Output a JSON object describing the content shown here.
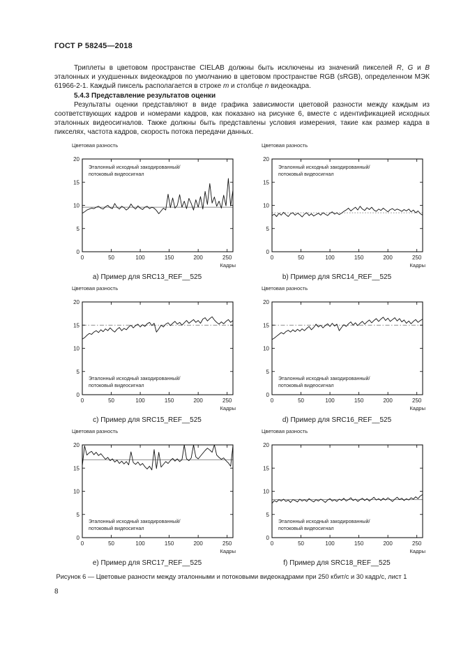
{
  "page": {
    "header": "ГОСТ Р 58245—2018",
    "para1": [
      {
        "t": "Триплеты в цветовом пространстве CIELAB должны быть исключены из значений пикселей "
      },
      {
        "t": "R",
        "i": true
      },
      {
        "t": ", "
      },
      {
        "t": "G",
        "i": true
      },
      {
        "t": " и "
      },
      {
        "t": "В",
        "i": true
      },
      {
        "t": " эталонных и ухудшенных видеокадров по умолчанию в цветовом пространстве RGB (sRGB), определенном МЭК 61966-2-1. Каждый пиксель располагается в строке "
      },
      {
        "t": "m",
        "i": true
      },
      {
        "t": " и столбце "
      },
      {
        "t": "n",
        "i": true
      },
      {
        "t": " видеокадра."
      }
    ],
    "heading_543": "5.4.3 Представление результатов оценки",
    "para2": "Результаты оценки представляют в виде графика зависимости цветовой разности между каждым из соответствующих кадров и номерами кадров, как показано на рисунке 6, вместе с идентификацией исходных эталонных видеосигналов. Также должны быть представлены условия измерения, такие как размер кадра в пикселях, частота кадров, скорость потока передачи данных.",
    "figure_caption": "Рисунок 6 — Цветовые разности между эталонными и потоковыми видеокадрами при 250 кбит/с и 30 кадр/с, лист 1",
    "page_number": "8"
  },
  "chart_common": {
    "ylabel": "Цветовая разность",
    "xlabel": "Кадры",
    "annotation": [
      "Эталонный исходный закодированный/",
      "потоковый видеосигнал"
    ],
    "line_color": "#111111",
    "ref_line_color": "#666666",
    "axis_color": "#000000"
  },
  "chart_data": [
    {
      "type": "line",
      "caption": "а) Пример для SRC13_REF__525",
      "annotation_pos": "top",
      "xlim": [
        0,
        260
      ],
      "ylim": [
        0,
        20
      ],
      "xticks": [
        0,
        50,
        100,
        150,
        200,
        250
      ],
      "yticks": [
        0,
        5,
        10,
        15,
        20
      ],
      "x_step": 4,
      "baseline": 9.6,
      "baseline_style": "solid",
      "values": [
        8.3,
        8.6,
        9.0,
        9.2,
        9.4,
        9.3,
        9.6,
        9.8,
        9.4,
        9.2,
        9.7,
        10.0,
        9.5,
        9.3,
        10.4,
        9.6,
        9.2,
        9.8,
        9.5,
        9.0,
        9.4,
        10.3,
        9.6,
        9.2,
        9.9,
        9.4,
        9.1,
        9.6,
        9.8,
        9.3,
        9.6,
        9.4,
        8.9,
        8.2,
        8.8,
        9.4,
        9.0,
        12.4,
        9.5,
        11.6,
        9.4,
        10.0,
        12.3,
        9.6,
        10.9,
        9.3,
        11.5,
        10.4,
        9.0,
        11.2,
        9.6,
        11.9,
        9.2,
        13.0,
        10.2,
        14.7,
        10.5,
        11.8,
        9.8,
        10.9,
        9.4,
        12.2,
        9.9,
        15.8,
        9.9,
        13.3
      ]
    },
    {
      "type": "line",
      "caption": "b) Пример для SRC14_REF__525",
      "annotation_pos": "top",
      "xlim": [
        0,
        260
      ],
      "ylim": [
        0,
        20
      ],
      "xticks": [
        0,
        50,
        100,
        150,
        200,
        250
      ],
      "yticks": [
        0,
        5,
        10,
        15,
        20
      ],
      "x_step": 4,
      "baseline": 8.4,
      "baseline_style": "dotted",
      "values": [
        7.8,
        8.1,
        7.6,
        8.3,
        7.9,
        8.5,
        8.0,
        7.6,
        8.2,
        8.4,
        7.9,
        8.3,
        8.0,
        7.5,
        8.1,
        8.4,
        7.8,
        8.2,
        7.7,
        8.0,
        8.3,
        7.9,
        8.4,
        8.1,
        7.8,
        8.3,
        8.6,
        8.1,
        8.4,
        8.0,
        8.3,
        8.7,
        9.0,
        9.4,
        8.8,
        9.2,
        9.6,
        9.0,
        9.8,
        9.2,
        8.9,
        9.5,
        9.1,
        9.6,
        9.0,
        8.7,
        9.2,
        8.9,
        9.4,
        9.0,
        8.6,
        9.1,
        9.3,
        8.9,
        9.2,
        9.0,
        8.7,
        9.1,
        8.8,
        9.2,
        8.6,
        9.0,
        8.4,
        8.8,
        8.2,
        7.9
      ]
    },
    {
      "type": "line",
      "caption": "с) Пример для SRC15_REF__525",
      "annotation_pos": "bottom",
      "xlim": [
        0,
        260
      ],
      "ylim": [
        0,
        20
      ],
      "xticks": [
        0,
        50,
        100,
        150,
        200,
        250
      ],
      "yticks": [
        0,
        5,
        10,
        15,
        20
      ],
      "x_step": 4,
      "baseline": 15.0,
      "baseline_style": "dashdot",
      "values": [
        12.0,
        12.3,
        12.8,
        13.2,
        13.0,
        13.5,
        13.8,
        13.4,
        14.0,
        13.6,
        14.2,
        13.8,
        14.4,
        13.9,
        13.5,
        14.1,
        14.5,
        13.8,
        14.3,
        14.0,
        14.6,
        15.0,
        14.4,
        14.9,
        15.2,
        14.6,
        15.1,
        14.7,
        15.3,
        15.6,
        14.9,
        15.4,
        13.5,
        14.2,
        15.0,
        14.6,
        15.2,
        15.5,
        14.9,
        15.4,
        15.8,
        15.2,
        15.6,
        15.0,
        15.5,
        16.0,
        15.4,
        15.8,
        16.2,
        15.6,
        16.0,
        15.4,
        16.3,
        16.6,
        15.9,
        16.4,
        16.8,
        16.1,
        15.6,
        15.2,
        15.7,
        15.3,
        15.8,
        16.2,
        15.6,
        16.0
      ]
    },
    {
      "type": "line",
      "caption": "d) Пример для SRC16_REF__525",
      "annotation_pos": "bottom",
      "xlim": [
        0,
        260
      ],
      "ylim": [
        0,
        20
      ],
      "xticks": [
        0,
        50,
        100,
        150,
        200,
        250
      ],
      "yticks": [
        0,
        5,
        10,
        15,
        20
      ],
      "x_step": 4,
      "baseline": 15.0,
      "baseline_style": "dashdot",
      "values": [
        11.9,
        12.2,
        12.6,
        13.0,
        13.4,
        13.1,
        13.6,
        13.9,
        13.5,
        14.0,
        13.6,
        14.1,
        13.7,
        14.2,
        13.8,
        14.3,
        14.7,
        14.0,
        14.5,
        15.2,
        14.6,
        15.0,
        14.4,
        14.9,
        15.3,
        14.7,
        15.4,
        14.8,
        15.2,
        13.8,
        14.5,
        15.1,
        14.7,
        15.3,
        15.7,
        15.0,
        15.5,
        14.9,
        15.4,
        15.8,
        15.2,
        15.7,
        16.1,
        15.5,
        16.0,
        16.4,
        15.8,
        16.3,
        16.7,
        16.0,
        16.5,
        15.8,
        16.2,
        16.6,
        15.9,
        16.4,
        15.7,
        16.1,
        15.4,
        15.9,
        15.3,
        15.8,
        16.2,
        15.6,
        16.0,
        16.3
      ]
    },
    {
      "type": "line",
      "caption": "е) Пример для SRC17_REF__525",
      "annotation_pos": "bottom",
      "xlim": [
        0,
        260
      ],
      "ylim": [
        0,
        20
      ],
      "xticks": [
        0,
        50,
        100,
        150,
        200,
        250
      ],
      "yticks": [
        0,
        5,
        10,
        15,
        20
      ],
      "x_step": 4,
      "baseline": 16.8,
      "baseline_style": "solid",
      "values": [
        15.5,
        19.8,
        17.8,
        18.3,
        18.6,
        17.9,
        18.4,
        17.7,
        18.1,
        17.5,
        16.9,
        17.3,
        16.6,
        17.0,
        16.3,
        16.7,
        16.0,
        16.5,
        15.9,
        16.4,
        15.7,
        18.5,
        16.2,
        15.8,
        16.3,
        15.6,
        16.0,
        15.3,
        14.8,
        15.4,
        14.6,
        19.0,
        14.9,
        18.4,
        15.2,
        15.8,
        16.4,
        16.0,
        16.6,
        17.1,
        16.5,
        17.0,
        16.4,
        16.8,
        20.0,
        17.0,
        16.6,
        17.2,
        20.0,
        17.4,
        17.0,
        17.6,
        18.2,
        18.8,
        19.3,
        18.9,
        18.4,
        20.0,
        17.8,
        17.3,
        16.9,
        17.2,
        16.6,
        16.1,
        15.4,
        19.8
      ]
    },
    {
      "type": "line",
      "caption": "f) Пример для SRC18_REF__525",
      "annotation_pos": "bottom",
      "xlim": [
        0,
        260
      ],
      "ylim": [
        0,
        20
      ],
      "xticks": [
        0,
        50,
        100,
        150,
        200,
        250
      ],
      "yticks": [
        0,
        5,
        10,
        15,
        20
      ],
      "x_step": 4,
      "baseline": 8.2,
      "baseline_style": "solid",
      "values": [
        7.4,
        8.0,
        7.7,
        8.2,
        7.9,
        8.3,
        7.8,
        8.1,
        7.6,
        8.2,
        8.0,
        7.7,
        8.3,
        7.9,
        8.2,
        7.8,
        8.4,
        8.0,
        7.7,
        8.2,
        7.9,
        8.3,
        8.0,
        7.6,
        8.1,
        8.4,
        7.9,
        8.2,
        7.8,
        8.3,
        8.0,
        8.5,
        7.9,
        8.2,
        8.6,
        8.0,
        8.3,
        7.8,
        8.2,
        8.5,
        8.0,
        8.4,
        7.9,
        8.3,
        8.7,
        8.1,
        8.4,
        8.0,
        8.5,
        8.1,
        8.6,
        8.2,
        7.8,
        8.3,
        8.7,
        8.2,
        8.5,
        8.0,
        8.4,
        8.1,
        8.6,
        8.3,
        8.8,
        8.4,
        9.0,
        9.3
      ]
    }
  ]
}
